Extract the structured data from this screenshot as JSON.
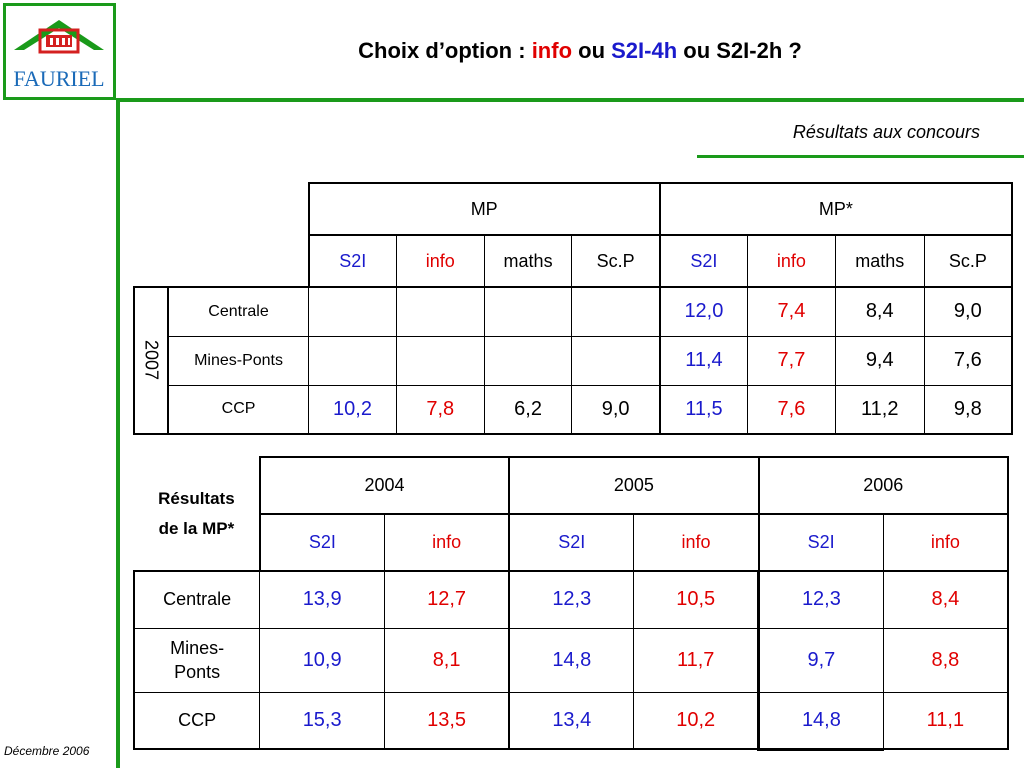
{
  "header": {
    "logo_text": "FAURIEL",
    "title_prefix": "Choix d’option : ",
    "title_info": "info",
    "title_ou1": " ou ",
    "title_s2i4h": "S2I-4h",
    "title_suffix": " ou S2I-2h ?",
    "subtitle": "Résultats aux concours"
  },
  "colors": {
    "green": "#1a9a1a",
    "blue": "#1a1acc",
    "red": "#e00000"
  },
  "table1": {
    "year": "2007",
    "groups": [
      "MP",
      "MP*"
    ],
    "subheaders": [
      "S2I",
      "info",
      "maths",
      "Sc.P",
      "S2I",
      "info",
      "maths",
      "Sc.P"
    ],
    "rows": [
      {
        "label": "Centrale",
        "values": [
          "",
          "",
          "",
          "",
          "12,0",
          "7,4",
          "8,4",
          "9,0"
        ]
      },
      {
        "label": "Mines-Ponts",
        "values": [
          "",
          "",
          "",
          "",
          "11,4",
          "7,7",
          "9,4",
          "7,6"
        ]
      },
      {
        "label": "CCP",
        "values": [
          "10,2",
          "7,8",
          "6,2",
          "9,0",
          "11,5",
          "7,6",
          "11,2",
          "9,8"
        ]
      }
    ]
  },
  "table2": {
    "corner_line1": "Résultats",
    "corner_line2": "de la MP*",
    "years": [
      "2004",
      "2005",
      "2006"
    ],
    "subheaders": [
      "S2I",
      "info",
      "S2I",
      "info",
      "S2I",
      "info"
    ],
    "rows": [
      {
        "label": "Centrale",
        "values": [
          "13,9",
          "12,7",
          "12,3",
          "10,5",
          "12,3",
          "8,4"
        ]
      },
      {
        "label_line1": "Mines-",
        "label_line2": "Ponts",
        "values": [
          "10,9",
          "8,1",
          "14,8",
          "11,7",
          "9,7",
          "8,8"
        ]
      },
      {
        "label": "CCP",
        "values": [
          "15,3",
          "13,5",
          "13,4",
          "10,2",
          "14,8",
          "11,1"
        ]
      }
    ]
  },
  "footer": "Décembre 2006"
}
